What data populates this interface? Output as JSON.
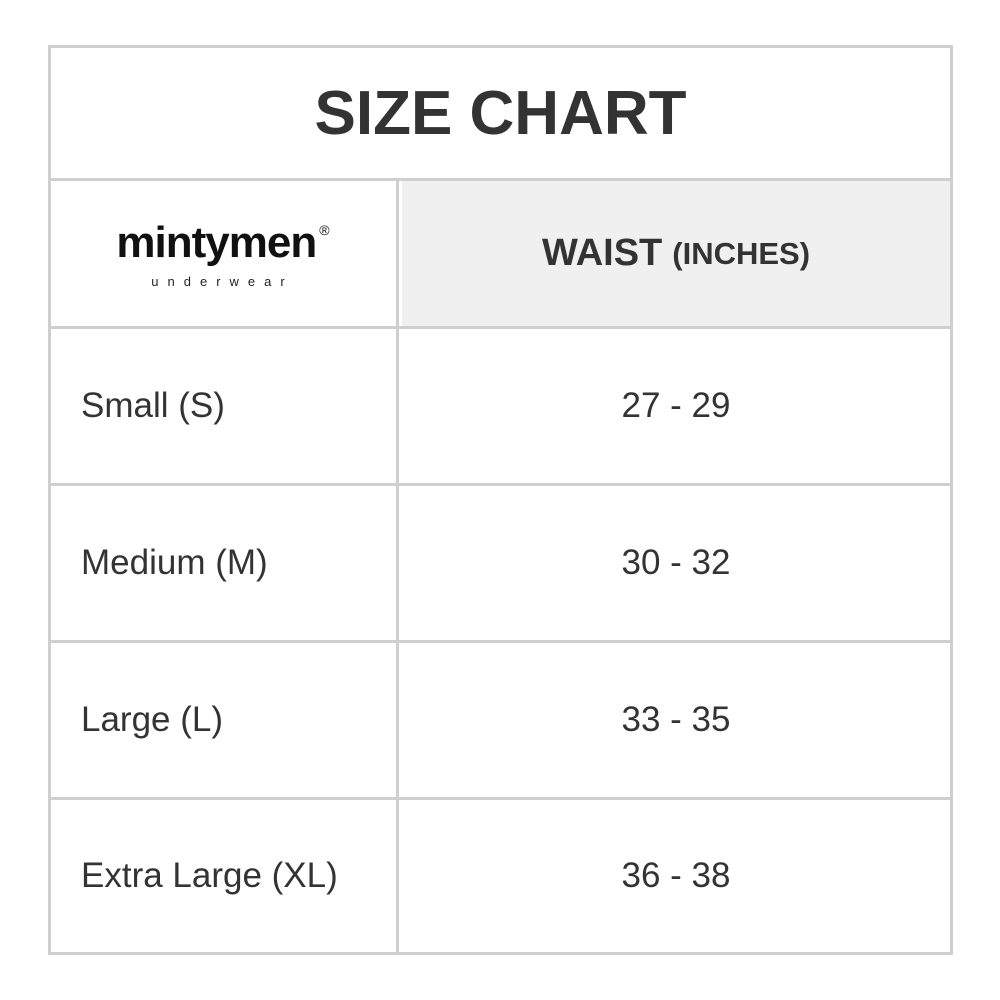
{
  "title": "SIZE CHART",
  "brand": {
    "name": "mintymen",
    "tagline": "underwear",
    "registered": "®"
  },
  "header": {
    "column": "WAIST",
    "unit": "(INCHES)"
  },
  "rows": [
    {
      "size": "Small (S)",
      "waist": "27 - 29"
    },
    {
      "size": "Medium (M)",
      "waist": "30 - 32"
    },
    {
      "size": "Large (L)",
      "waist": "33 - 35"
    },
    {
      "size": "Extra Large (XL)",
      "waist": "36 - 38"
    }
  ],
  "colors": {
    "text": "#333333",
    "border": "#cfcfcf",
    "header_bg": "#f0f0f0"
  }
}
